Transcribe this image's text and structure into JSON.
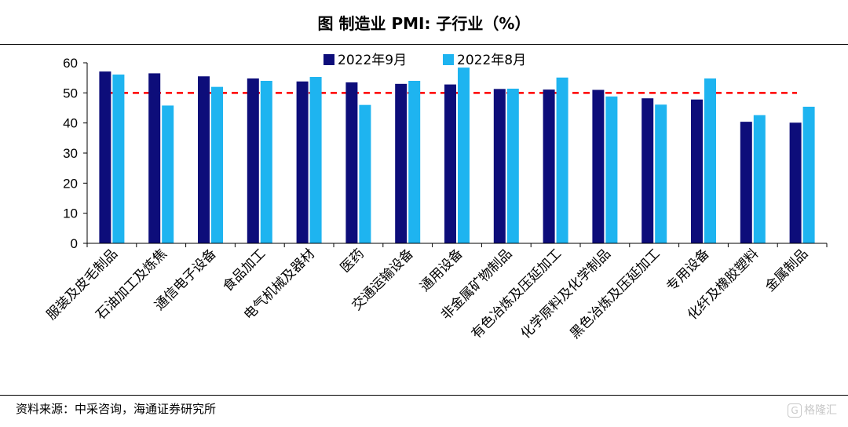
{
  "header": {
    "title": "图  制造业 PMI:  子行业（%）"
  },
  "footer": {
    "source": "资料来源：中采咨询，海通证券研究所",
    "watermark_text": "格隆汇"
  },
  "chart_data": {
    "type": "bar",
    "title": "图  制造业 PMI:  子行业（%）",
    "xlabel": "",
    "ylabel": "",
    "ylim": [
      0,
      60
    ],
    "yticks": [
      0,
      10,
      20,
      30,
      40,
      50,
      60
    ],
    "grid": false,
    "legend_position": "top-center",
    "reference_line": {
      "value": 50,
      "color": "#ff0000",
      "style": "dashed"
    },
    "categories": [
      "服装及皮毛制品",
      "石油加工及炼焦",
      "通信电子设备",
      "食品加工",
      "电气机械及器材",
      "医药",
      "交通运输设备",
      "通用设备",
      "非金属矿物制品",
      "有色冶炼及压延加工",
      "化学原料及化学制品",
      "黑色冶炼及压延加工",
      "专用设备",
      "化纤及橡胶塑料",
      "金属制品"
    ],
    "series": [
      {
        "name": "2022年9月",
        "color": "#0d0d7a",
        "values": [
          57.1,
          56.5,
          55.5,
          54.8,
          53.8,
          53.5,
          53.0,
          52.8,
          51.3,
          51.1,
          51.0,
          48.2,
          47.8,
          40.4,
          40.1
        ]
      },
      {
        "name": "2022年8月",
        "color": "#1eb4f0",
        "values": [
          56.1,
          45.8,
          52.0,
          54.0,
          55.3,
          46.0,
          54.0,
          58.4,
          51.4,
          55.1,
          48.8,
          46.1,
          54.8,
          42.6,
          45.4
        ]
      }
    ]
  }
}
